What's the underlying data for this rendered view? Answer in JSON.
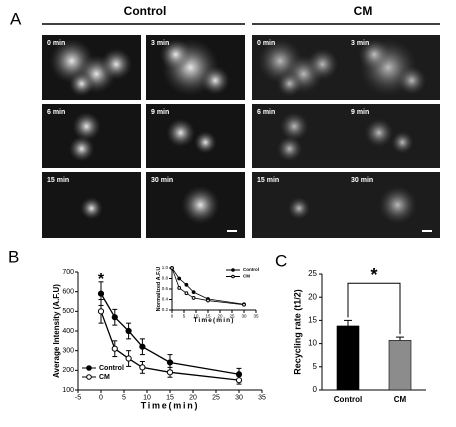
{
  "panel_labels": [
    "A",
    "B",
    "C"
  ],
  "microscopy": {
    "groups": [
      "Control",
      "CM"
    ],
    "timepoints": [
      "0 min",
      "3 min",
      "6 min",
      "9 min",
      "15 min",
      "30 min"
    ]
  },
  "chart_data": [
    {
      "type": "line",
      "xlabel": "Time(min)",
      "ylabel": "Average Intensity (A.F.U)",
      "x": [
        0,
        3,
        6,
        9,
        15,
        30
      ],
      "series": [
        {
          "name": "Control",
          "color": "#000000",
          "marker": "filled",
          "values": [
            590,
            470,
            400,
            320,
            240,
            180
          ],
          "errors": [
            60,
            40,
            40,
            40,
            40,
            30
          ]
        },
        {
          "name": "CM",
          "color": "#000000",
          "marker": "open",
          "values": [
            500,
            310,
            260,
            215,
            190,
            150
          ],
          "errors": [
            60,
            40,
            40,
            30,
            25,
            20
          ]
        }
      ],
      "xlim": [
        -5,
        35
      ],
      "xticks": [
        -5,
        0,
        5,
        10,
        15,
        20,
        25,
        30,
        35
      ],
      "ylim": [
        100,
        700
      ],
      "yticks": [
        100,
        200,
        300,
        400,
        500,
        600,
        700
      ],
      "legend": "lower left",
      "annotations": [
        {
          "text": "*",
          "x": 0,
          "y": 660
        }
      ]
    },
    {
      "type": "line",
      "xlabel": "Time(min)",
      "ylabel": "Normalized A.F.U",
      "x": [
        0,
        3,
        6,
        9,
        15,
        30
      ],
      "series": [
        {
          "name": "Control",
          "color": "#000000",
          "marker": "filled",
          "values": [
            1.0,
            0.8,
            0.68,
            0.54,
            0.41,
            0.31
          ]
        },
        {
          "name": "CM",
          "color": "#000000",
          "marker": "open",
          "values": [
            1.0,
            0.62,
            0.52,
            0.43,
            0.38,
            0.3
          ]
        }
      ],
      "xlim": [
        0,
        35
      ],
      "xticks": [
        0,
        5,
        10,
        15,
        20,
        25,
        30,
        35
      ],
      "ylim": [
        0.2,
        1.0
      ],
      "yticks": [
        0.2,
        0.4,
        0.6,
        0.8,
        {
          "value": 1.0,
          "label": "1.0"
        }
      ],
      "legend": "upper right"
    },
    {
      "type": "bar",
      "ylabel": "Recycling rate (t1/2)",
      "categories": [
        "Control",
        "CM"
      ],
      "values": [
        13.8,
        10.7
      ],
      "errors": [
        1.2,
        0.7
      ],
      "colors": [
        "#000000",
        "#8c8c8c"
      ],
      "ylim": [
        0,
        25
      ],
      "yticks": [
        0,
        5,
        10,
        15,
        20,
        25
      ],
      "annotations": [
        {
          "text": "*",
          "y": 23
        }
      ]
    }
  ]
}
